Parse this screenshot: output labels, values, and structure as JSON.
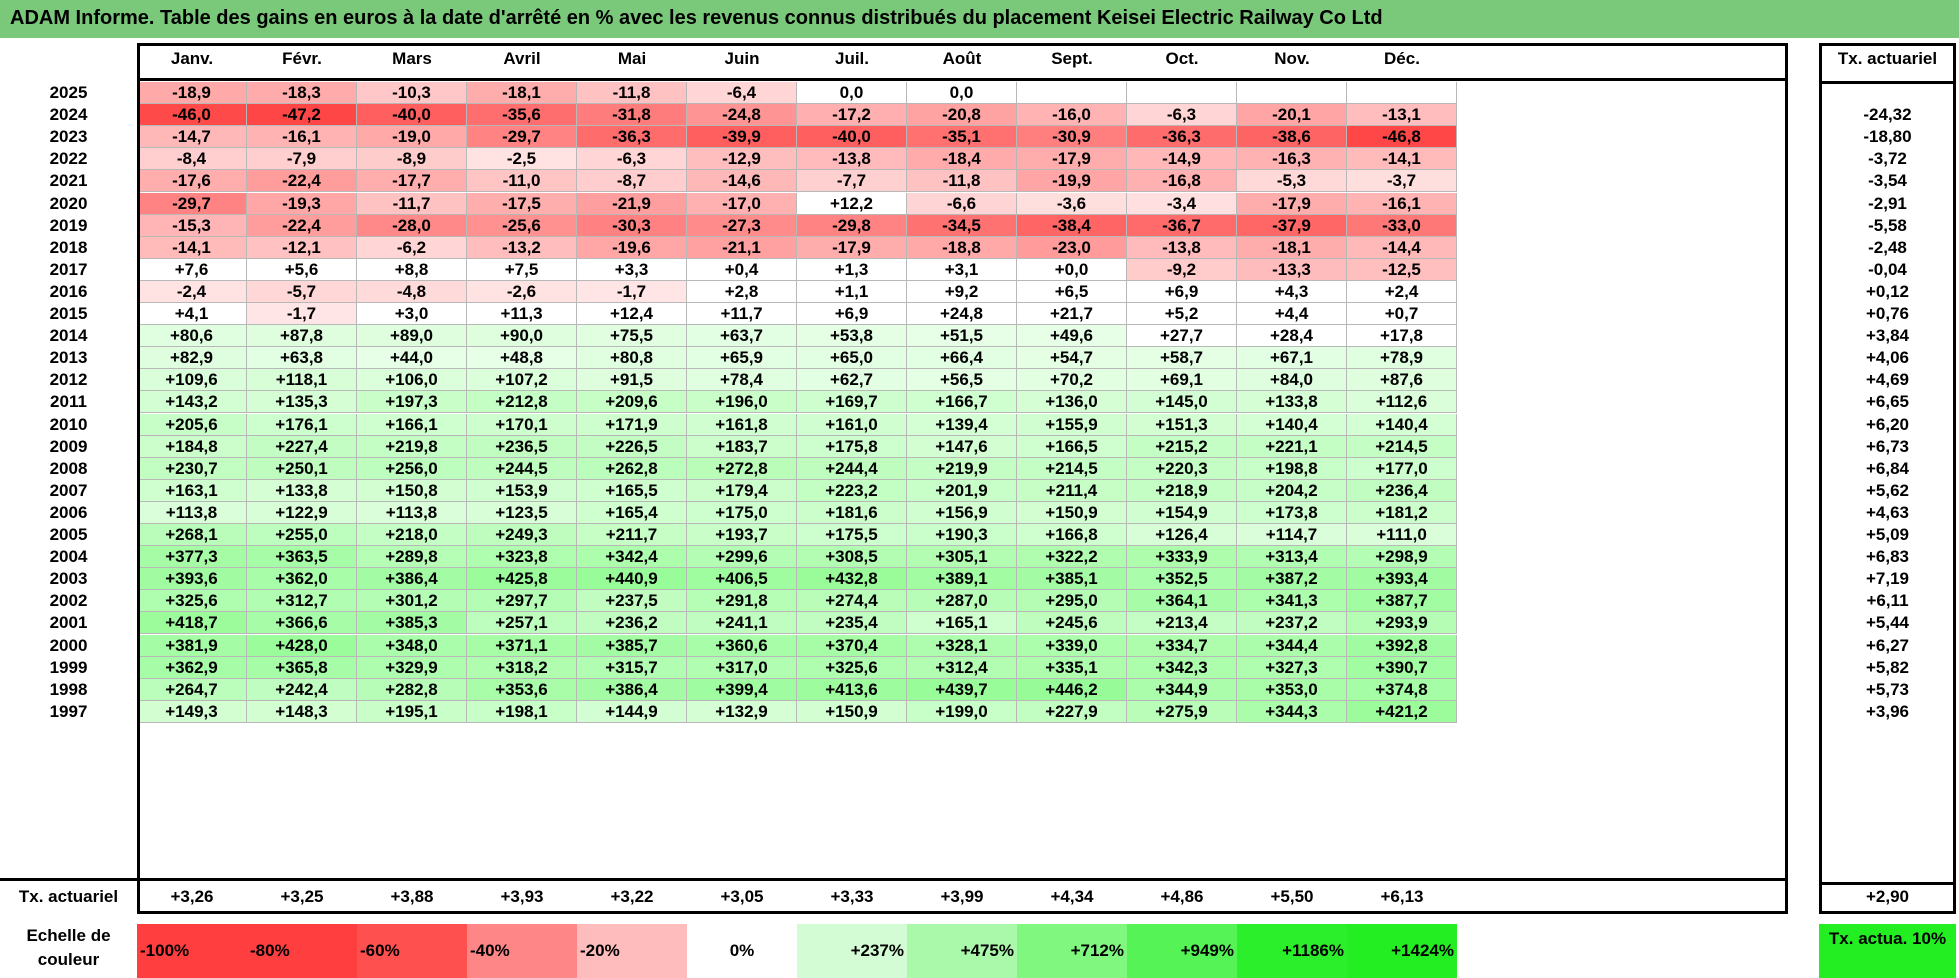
{
  "title": "ADAM Informe. Table des gains en euros à la date d'arrêté en % avec les revenus connus distribués du placement Keisei Electric Railway Co Ltd",
  "months": [
    "Janv.",
    "Févr.",
    "Mars",
    "Avril",
    "Mai",
    "Juin",
    "Juil.",
    "Août",
    "Sept.",
    "Oct.",
    "Nov.",
    "Déc."
  ],
  "rate_header": "Tx. actuariel",
  "rows": [
    {
      "year": "2025",
      "values": [
        "-18,9",
        "-18,3",
        "-10,3",
        "-18,1",
        "-11,8",
        "-6,4",
        "0,0",
        "0,0",
        "",
        "",
        "",
        ""
      ],
      "rate": ""
    },
    {
      "year": "2024",
      "values": [
        "-46,0",
        "-47,2",
        "-40,0",
        "-35,6",
        "-31,8",
        "-24,8",
        "-17,2",
        "-20,8",
        "-16,0",
        "-6,3",
        "-20,1",
        "-13,1"
      ],
      "rate": "-24,32"
    },
    {
      "year": "2023",
      "values": [
        "-14,7",
        "-16,1",
        "-19,0",
        "-29,7",
        "-36,3",
        "-39,9",
        "-40,0",
        "-35,1",
        "-30,9",
        "-36,3",
        "-38,6",
        "-46,8"
      ],
      "rate": "-18,80"
    },
    {
      "year": "2022",
      "values": [
        "-8,4",
        "-7,9",
        "-8,9",
        "-2,5",
        "-6,3",
        "-12,9",
        "-13,8",
        "-18,4",
        "-17,9",
        "-14,9",
        "-16,3",
        "-14,1"
      ],
      "rate": "-3,72"
    },
    {
      "year": "2021",
      "values": [
        "-17,6",
        "-22,4",
        "-17,7",
        "-11,0",
        "-8,7",
        "-14,6",
        "-7,7",
        "-11,8",
        "-19,9",
        "-16,8",
        "-5,3",
        "-3,7"
      ],
      "rate": "-3,54"
    },
    {
      "year": "2020",
      "values": [
        "-29,7",
        "-19,3",
        "-11,7",
        "-17,5",
        "-21,9",
        "-17,0",
        "+12,2",
        "-6,6",
        "-3,6",
        "-3,4",
        "-17,9",
        "-16,1"
      ],
      "rate": "-2,91"
    },
    {
      "year": "2019",
      "values": [
        "-15,3",
        "-22,4",
        "-28,0",
        "-25,6",
        "-30,3",
        "-27,3",
        "-29,8",
        "-34,5",
        "-38,4",
        "-36,7",
        "-37,9",
        "-33,0"
      ],
      "rate": "-5,58"
    },
    {
      "year": "2018",
      "values": [
        "-14,1",
        "-12,1",
        "-6,2",
        "-13,2",
        "-19,6",
        "-21,1",
        "-17,9",
        "-18,8",
        "-23,0",
        "-13,8",
        "-18,1",
        "-14,4"
      ],
      "rate": "-2,48"
    },
    {
      "year": "2017",
      "values": [
        "+7,6",
        "+5,6",
        "+8,8",
        "+7,5",
        "+3,3",
        "+0,4",
        "+1,3",
        "+3,1",
        "+0,0",
        "-9,2",
        "-13,3",
        "-12,5"
      ],
      "rate": "-0,04"
    },
    {
      "year": "2016",
      "values": [
        "-2,4",
        "-5,7",
        "-4,8",
        "-2,6",
        "-1,7",
        "+2,8",
        "+1,1",
        "+9,2",
        "+6,5",
        "+6,9",
        "+4,3",
        "+2,4"
      ],
      "rate": "+0,12"
    },
    {
      "year": "2015",
      "values": [
        "+4,1",
        "-1,7",
        "+3,0",
        "+11,3",
        "+12,4",
        "+11,7",
        "+6,9",
        "+24,8",
        "+21,7",
        "+5,2",
        "+4,4",
        "+0,7"
      ],
      "rate": "+0,76"
    },
    {
      "year": "2014",
      "values": [
        "+80,6",
        "+87,8",
        "+89,0",
        "+90,0",
        "+75,5",
        "+63,7",
        "+53,8",
        "+51,5",
        "+49,6",
        "+27,7",
        "+28,4",
        "+17,8"
      ],
      "rate": "+3,84"
    },
    {
      "year": "2013",
      "values": [
        "+82,9",
        "+63,8",
        "+44,0",
        "+48,8",
        "+80,8",
        "+65,9",
        "+65,0",
        "+66,4",
        "+54,7",
        "+58,7",
        "+67,1",
        "+78,9"
      ],
      "rate": "+4,06"
    },
    {
      "year": "2012",
      "values": [
        "+109,6",
        "+118,1",
        "+106,0",
        "+107,2",
        "+91,5",
        "+78,4",
        "+62,7",
        "+56,5",
        "+70,2",
        "+69,1",
        "+84,0",
        "+87,6"
      ],
      "rate": "+4,69"
    },
    {
      "year": "2011",
      "values": [
        "+143,2",
        "+135,3",
        "+197,3",
        "+212,8",
        "+209,6",
        "+196,0",
        "+169,7",
        "+166,7",
        "+136,0",
        "+145,0",
        "+133,8",
        "+112,6"
      ],
      "rate": "+6,65"
    },
    {
      "year": "2010",
      "values": [
        "+205,6",
        "+176,1",
        "+166,1",
        "+170,1",
        "+171,9",
        "+161,8",
        "+161,0",
        "+139,4",
        "+155,9",
        "+151,3",
        "+140,4",
        "+140,4"
      ],
      "rate": "+6,20"
    },
    {
      "year": "2009",
      "values": [
        "+184,8",
        "+227,4",
        "+219,8",
        "+236,5",
        "+226,5",
        "+183,7",
        "+175,8",
        "+147,6",
        "+166,5",
        "+215,2",
        "+221,1",
        "+214,5"
      ],
      "rate": "+6,73"
    },
    {
      "year": "2008",
      "values": [
        "+230,7",
        "+250,1",
        "+256,0",
        "+244,5",
        "+262,8",
        "+272,8",
        "+244,4",
        "+219,9",
        "+214,5",
        "+220,3",
        "+198,8",
        "+177,0"
      ],
      "rate": "+6,84"
    },
    {
      "year": "2007",
      "values": [
        "+163,1",
        "+133,8",
        "+150,8",
        "+153,9",
        "+165,5",
        "+179,4",
        "+223,2",
        "+201,9",
        "+211,4",
        "+218,9",
        "+204,2",
        "+236,4"
      ],
      "rate": "+5,62"
    },
    {
      "year": "2006",
      "values": [
        "+113,8",
        "+122,9",
        "+113,8",
        "+123,5",
        "+165,4",
        "+175,0",
        "+181,6",
        "+156,9",
        "+150,9",
        "+154,9",
        "+173,8",
        "+181,2"
      ],
      "rate": "+4,63"
    },
    {
      "year": "2005",
      "values": [
        "+268,1",
        "+255,0",
        "+218,0",
        "+249,3",
        "+211,7",
        "+193,7",
        "+175,5",
        "+190,3",
        "+166,8",
        "+126,4",
        "+114,7",
        "+111,0"
      ],
      "rate": "+5,09"
    },
    {
      "year": "2004",
      "values": [
        "+377,3",
        "+363,5",
        "+289,8",
        "+323,8",
        "+342,4",
        "+299,6",
        "+308,5",
        "+305,1",
        "+322,2",
        "+333,9",
        "+313,4",
        "+298,9"
      ],
      "rate": "+6,83"
    },
    {
      "year": "2003",
      "values": [
        "+393,6",
        "+362,0",
        "+386,4",
        "+425,8",
        "+440,9",
        "+406,5",
        "+432,8",
        "+389,1",
        "+385,1",
        "+352,5",
        "+387,2",
        "+393,4"
      ],
      "rate": "+7,19"
    },
    {
      "year": "2002",
      "values": [
        "+325,6",
        "+312,7",
        "+301,2",
        "+297,7",
        "+237,5",
        "+291,8",
        "+274,4",
        "+287,0",
        "+295,0",
        "+364,1",
        "+341,3",
        "+387,7"
      ],
      "rate": "+6,11"
    },
    {
      "year": "2001",
      "values": [
        "+418,7",
        "+366,6",
        "+385,3",
        "+257,1",
        "+236,2",
        "+241,1",
        "+235,4",
        "+165,1",
        "+245,6",
        "+213,4",
        "+237,2",
        "+293,9"
      ],
      "rate": "+5,44"
    },
    {
      "year": "2000",
      "values": [
        "+381,9",
        "+428,0",
        "+348,0",
        "+371,1",
        "+385,7",
        "+360,6",
        "+370,4",
        "+328,1",
        "+339,0",
        "+334,7",
        "+344,4",
        "+392,8"
      ],
      "rate": "+6,27"
    },
    {
      "year": "1999",
      "values": [
        "+362,9",
        "+365,8",
        "+329,9",
        "+318,2",
        "+315,7",
        "+317,0",
        "+325,6",
        "+312,4",
        "+335,1",
        "+342,3",
        "+327,3",
        "+390,7"
      ],
      "rate": "+5,82"
    },
    {
      "year": "1998",
      "values": [
        "+264,7",
        "+242,4",
        "+282,8",
        "+353,6",
        "+386,4",
        "+399,4",
        "+413,6",
        "+439,7",
        "+446,2",
        "+344,9",
        "+353,0",
        "+374,8"
      ],
      "rate": "+5,73"
    },
    {
      "year": "1997",
      "values": [
        "+149,3",
        "+148,3",
        "+195,1",
        "+198,1",
        "+144,9",
        "+132,9",
        "+150,9",
        "+199,0",
        "+227,9",
        "+275,9",
        "+344,3",
        "+421,2"
      ],
      "rate": "+3,96"
    }
  ],
  "annual": {
    "label": "Tx. actuariel",
    "values": [
      "+3,26",
      "+3,25",
      "+3,88",
      "+3,93",
      "+3,22",
      "+3,05",
      "+3,33",
      "+3,99",
      "+4,34",
      "+4,86",
      "+5,50",
      "+6,13"
    ],
    "rate": "+2,90"
  },
  "scale": {
    "label": "Echelle de couleur",
    "steps": [
      {
        "label": "-100%",
        "color": "#ff3f3f"
      },
      {
        "label": "-80%",
        "color": "#ff3f3f"
      },
      {
        "label": "-60%",
        "color": "#ff5050"
      },
      {
        "label": "-40%",
        "color": "#ff8686"
      },
      {
        "label": "-20%",
        "color": "#ffbcbc"
      },
      {
        "label": "0%",
        "color": "#ffffff"
      },
      {
        "label": "+237%",
        "color": "#d4fcd4"
      },
      {
        "label": "+475%",
        "color": "#aaf9aa"
      },
      {
        "label": "+712%",
        "color": "#80f880"
      },
      {
        "label": "+949%",
        "color": "#55f355"
      },
      {
        "label": "+1186%",
        "color": "#2bef2b"
      },
      {
        "label": "+1424%",
        "color": "#22ee22"
      }
    ],
    "right_label": "Tx. actua. 10%"
  }
}
